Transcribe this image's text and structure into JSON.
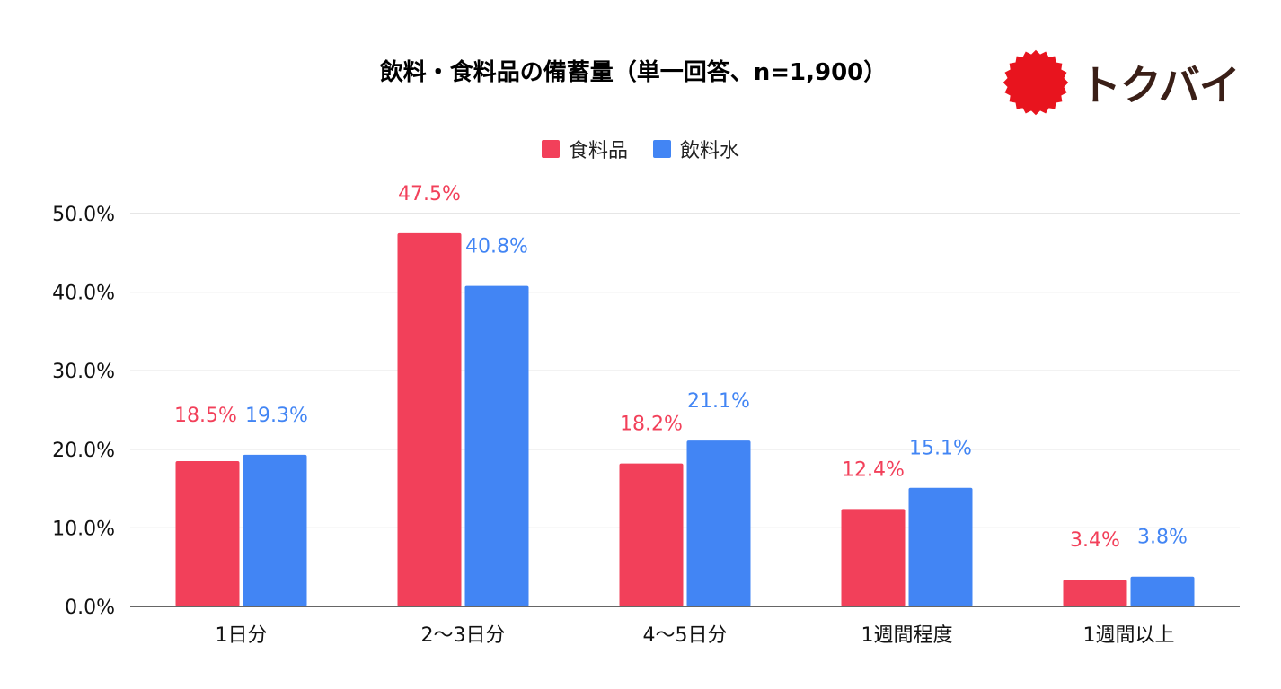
{
  "chart_data": {
    "type": "bar",
    "title": "飲料・食料品の備蓄量（単一回答、n=1,900）",
    "categories": [
      "1日分",
      "2〜3日分",
      "4〜5日分",
      "1週間程度",
      "1週間以上"
    ],
    "series": [
      {
        "name": "食料品",
        "color": "#F2405A",
        "values": [
          18.5,
          47.5,
          18.2,
          12.4,
          3.4
        ],
        "labels": [
          "18.5%",
          "47.5%",
          "18.2%",
          "12.4%",
          "3.4%"
        ]
      },
      {
        "name": "飲料水",
        "color": "#4285F4",
        "values": [
          19.3,
          40.8,
          21.1,
          15.1,
          3.8
        ],
        "labels": [
          "19.3%",
          "40.8%",
          "21.1%",
          "15.1%",
          "3.8%"
        ]
      }
    ],
    "y_ticks": [
      0,
      10,
      20,
      30,
      40,
      50
    ],
    "y_tick_labels": [
      "0.0%",
      "10.0%",
      "20.0%",
      "30.0%",
      "40.0%",
      "50.0%"
    ],
    "ylim": [
      0,
      50
    ],
    "xlabel": "",
    "ylabel": "",
    "grid": true,
    "legend_position": "top-center"
  },
  "brand": {
    "name": "トクバイ",
    "badge_color": "#E8141E",
    "text_color": "#3A1F17",
    "icon": "sunburst-badge-icon"
  }
}
